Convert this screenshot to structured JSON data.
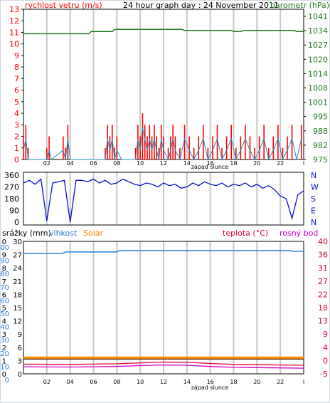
{
  "colors": {
    "wind": "#ff0000",
    "gust_line": "#1a8fc1",
    "baro": "#1f7a1f",
    "dir": "#0010c8",
    "humidity": "#2a7fd0",
    "solar": "#ff8c00",
    "temp": "#e0003a",
    "dew": "#cc00cc",
    "grid": "#c8c8c8",
    "frame": "#000000"
  },
  "top": {
    "title": "24 hour graph day : 24 November 2011",
    "left_label": "rychlost vetru (m/s)",
    "right_label": "barometr (hPa)",
    "left_ticks": [
      "13",
      "12",
      "11",
      "10",
      "9",
      "8",
      "7",
      "6",
      "5",
      "4",
      "3",
      "2",
      "1",
      "0"
    ],
    "right_ticks": [
      "1041",
      "1034",
      "1027",
      "1020",
      "1014",
      "1008",
      "1001",
      "995",
      "988",
      "982",
      "975"
    ],
    "x_ticks": [
      "02",
      "04",
      "06",
      "08",
      "10",
      "12",
      "14",
      "16",
      "18",
      "20",
      "22",
      "I"
    ],
    "x_label": "západ slunce"
  },
  "mid": {
    "left_ticks": [
      "360",
      "270",
      "180",
      "90",
      "0"
    ],
    "right_ticks": [
      "N",
      "W",
      "S",
      "E",
      "N"
    ]
  },
  "bottom": {
    "label_rain": "srážky (mm)",
    "label_hum": "vlhkost",
    "label_solar": "Solar",
    "label_temp": "teplota (°C)",
    "label_dew": "rosný bod",
    "rain_ticks": [
      "10",
      "9",
      "8",
      "7",
      "6",
      "5",
      "4",
      "3",
      "2",
      "1",
      "0"
    ],
    "hum_ticks": [
      "30",
      "27",
      "24",
      "21",
      "18",
      "15",
      "12",
      "9",
      "6",
      "3",
      "0"
    ],
    "hum_ticks_b": [
      "100",
      "90",
      "80",
      "70",
      "60",
      "50",
      "40",
      "30",
      "20",
      "10",
      "0"
    ],
    "temp_ticks": [
      "40",
      "36",
      "31",
      "27",
      "22",
      "18",
      "13",
      "9",
      "4",
      "0",
      "-5"
    ],
    "x_ticks": [
      "02",
      "04",
      "06",
      "08",
      "10",
      "12",
      "14",
      "16",
      "18",
      "20",
      "22",
      "I"
    ],
    "x_label": "západ slunce"
  },
  "chart_data": [
    {
      "type": "line",
      "title": "24 hour graph day : 24 November 2011",
      "xlabel": "",
      "ylabel": "rychlost vetru (m/s)",
      "x_range_hours": [
        0,
        24
      ],
      "ylim": [
        0,
        13
      ],
      "y2lim": [
        975,
        1041
      ],
      "series": [
        {
          "name": "rychlost vetru (m/s)",
          "axis": "left",
          "x": [
            0,
            0.2,
            0.4,
            0.8,
            2,
            2.2,
            2.4,
            3.4,
            3.6,
            3.8,
            4,
            5,
            6,
            7,
            7.2,
            7.4,
            7.6,
            7.8,
            8,
            8.4,
            9.6,
            9.8,
            10,
            10.2,
            10.4,
            10.6,
            10.8,
            11,
            11.2,
            11.4,
            11.6,
            11.8,
            12,
            12.4,
            12.6,
            12.8,
            13,
            13.4,
            13.8,
            14.2,
            14.6,
            15,
            15.4,
            15.8,
            16.2,
            16.6,
            17,
            17.4,
            17.8,
            18.2,
            18.6,
            19,
            19.4,
            19.8,
            20.2,
            20.6,
            21,
            21.4,
            21.8,
            22.2,
            22.6,
            23,
            23.4,
            23.8
          ],
          "y": [
            2,
            3,
            1,
            0,
            1,
            2,
            0,
            2,
            1,
            3,
            0,
            0,
            0,
            1,
            3,
            2,
            3,
            1,
            2,
            0,
            1,
            3,
            2,
            4,
            3,
            2,
            3,
            2,
            3,
            2,
            1,
            3,
            2,
            1,
            2,
            3,
            2,
            1,
            3,
            2,
            1,
            2,
            3,
            1,
            2,
            3,
            1,
            2,
            3,
            1,
            2,
            3,
            2,
            1,
            2,
            3,
            1,
            2,
            3,
            1,
            2,
            3,
            0,
            3
          ]
        },
        {
          "name": "barometr (hPa)",
          "axis": "right",
          "x": [
            0,
            5.6,
            5.8,
            7.6,
            7.8,
            13.6,
            13.8,
            17.8,
            18,
            18.6,
            18.8,
            23.2,
            23.4,
            24
          ],
          "y": [
            1033,
            1033,
            1034,
            1034,
            1035,
            1035,
            1034.5,
            1034.5,
            1034,
            1034,
            1034.5,
            1034.5,
            1034,
            1034
          ]
        }
      ]
    },
    {
      "type": "line",
      "ylabel": "",
      "ylim": [
        0,
        360
      ],
      "series": [
        {
          "name": "",
          "x": [
            0,
            0.5,
            1,
            1.5,
            2,
            2.5,
            3,
            3.5,
            4,
            4.5,
            5,
            5.5,
            6,
            6.5,
            7,
            7.5,
            8,
            8.5,
            9,
            9.5,
            10,
            10.5,
            11,
            11.5,
            12,
            12.5,
            13,
            13.5,
            14,
            14.5,
            15,
            15.5,
            16,
            16.5,
            17,
            17.5,
            18,
            18.5,
            19,
            19.5,
            20,
            20.5,
            21,
            21.5,
            22,
            22.5,
            23,
            23.5,
            24
          ],
          "y": [
            300,
            320,
            290,
            330,
            10,
            300,
            310,
            320,
            0,
            320,
            320,
            310,
            330,
            300,
            320,
            290,
            300,
            330,
            310,
            290,
            280,
            300,
            290,
            270,
            300,
            280,
            290,
            260,
            270,
            300,
            280,
            310,
            290,
            280,
            300,
            270,
            290,
            280,
            300,
            270,
            290,
            260,
            280,
            250,
            200,
            180,
            30,
            210,
            240
          ]
        }
      ]
    },
    {
      "type": "line",
      "ylabel": "srážky (mm)",
      "ylim": [
        0,
        100
      ],
      "y2lim": [
        -5,
        40
      ],
      "series": [
        {
          "name": "vlhkost",
          "axis": "left_hum",
          "x": [
            0,
            3.4,
            3.6,
            8,
            8.2,
            22.8,
            23,
            24
          ],
          "y": [
            91,
            91,
            92,
            92,
            93,
            93,
            92.5,
            92.5
          ]
        },
        {
          "name": "teplota (°C)",
          "axis": "right",
          "x": [
            0,
            4,
            8,
            10,
            12,
            14,
            16,
            18,
            20,
            22,
            24
          ],
          "y": [
            -1.7,
            -1.8,
            -1.6,
            -1.3,
            -1.0,
            -1.1,
            -1.5,
            -1.8,
            -1.9,
            -2.0,
            -2.1
          ]
        },
        {
          "name": "rosný bod",
          "axis": "right",
          "x": [
            0,
            4,
            8,
            10,
            12,
            14,
            16,
            18,
            20,
            22,
            24
          ],
          "y": [
            -2.6,
            -2.7,
            -2.5,
            -2.2,
            -2.0,
            -2.1,
            -2.5,
            -2.8,
            -2.9,
            -3.0,
            -3.1
          ]
        },
        {
          "name": "Solar",
          "axis": "right",
          "x": [
            0,
            24
          ],
          "y": [
            0.4,
            0.4
          ]
        },
        {
          "name": "srážky (mm)",
          "axis": "left",
          "x": [
            0,
            24
          ],
          "y": [
            0,
            0
          ]
        }
      ]
    }
  ]
}
